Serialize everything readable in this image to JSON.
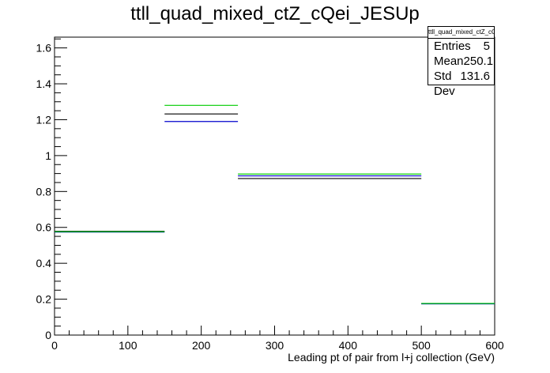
{
  "chart_data": {
    "type": "histogram",
    "title": "ttll_quad_mixed_ctZ_cQei_JESUp",
    "xlabel": "Leading pt of pair from l+j collection (GeV)",
    "ylabel": "",
    "xlim": [
      0,
      600
    ],
    "ylim": [
      0,
      1.66
    ],
    "x_ticks": [
      "0",
      "100",
      "200",
      "300",
      "400",
      "500",
      "600"
    ],
    "x_tick_values": [
      0,
      100,
      200,
      300,
      400,
      500,
      600
    ],
    "y_ticks": [
      "0",
      "0.2",
      "0.4",
      "0.6",
      "0.8",
      "1",
      "1.2",
      "1.4",
      "1.6"
    ],
    "y_tick_values": [
      0,
      0.2,
      0.4,
      0.6,
      0.8,
      1.0,
      1.2,
      1.4,
      1.6
    ],
    "bin_edges": [
      0,
      150,
      250,
      500,
      600
    ],
    "series": [
      {
        "color": "#000000",
        "values": [
          0.578,
          1.232,
          0.872,
          0.175
        ]
      },
      {
        "color": "#0000cc",
        "values": [
          0.574,
          1.19,
          0.887,
          0.174
        ]
      },
      {
        "color": "#00cc00",
        "values": [
          0.576,
          1.28,
          0.897,
          0.176
        ]
      }
    ],
    "grid": false,
    "stats_box": {
      "title": "ttll_quad_mixed_ctZ_cQei_JESUp",
      "rows": [
        {
          "label": "Entries",
          "value": "5"
        },
        {
          "label": "Mean",
          "value": "250.1"
        },
        {
          "label": "Std Dev",
          "value": "131.6"
        }
      ]
    }
  }
}
